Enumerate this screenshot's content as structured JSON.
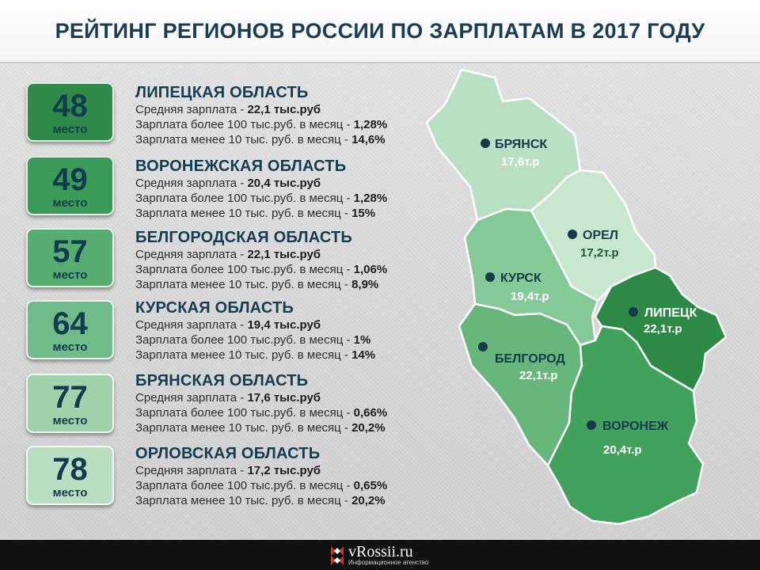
{
  "title": "РЕЙТИНГ РЕГИОНОВ РОССИИ ПО ЗАРПЛАТАМ В 2017 ГОДУ",
  "place_word": "место",
  "items": [
    {
      "rank": "48",
      "name": "ЛИПЕЦКАЯ ОБЛАСТЬ",
      "avg_label": "Средняя зарплата - ",
      "avg_value": "22,1 тыс.руб",
      "over_label": "Зарплата более 100 тыс.руб. в месяц - ",
      "over_value": "1,28%",
      "under_label": "Зарплата менее 10 тыс. руб. в месяц - ",
      "under_value": "14,6%",
      "color": "#2f8a4a"
    },
    {
      "rank": "49",
      "name": "ВОРОНЕЖСКАЯ ОБЛАСТЬ",
      "avg_label": "Средняя зарплата - ",
      "avg_value": "20,4 тыс.руб",
      "over_label": "Зарплата более 100 тыс.руб. в месяц - ",
      "over_value": "1,28%",
      "under_label": "Зарплата менее 10 тыс. руб. в месяц - ",
      "under_value": "15%",
      "color": "#3a9b59"
    },
    {
      "rank": "57",
      "name": "БЕЛГОРОДСКАЯ ОБЛАСТЬ",
      "avg_label": "Средняя зарплата - ",
      "avg_value": "22,1 тыс.руб",
      "over_label": "Зарплата более 100 тыс.руб. в месяц - ",
      "over_value": "1,06%",
      "under_label": "Зарплата менее 10 тыс. руб. в месяц - ",
      "under_value": "8,9%",
      "color": "#56ad72"
    },
    {
      "rank": "64",
      "name": "КУРСКАЯ ОБЛАСТЬ",
      "avg_label": "Средняя зарплата - ",
      "avg_value": "19,4 тыс.руб",
      "over_label": "Зарплата более 100 тыс.руб. в месяц - ",
      "over_value": "1%",
      "under_label": "Зарплата менее 10 тыс. руб. в месяц - ",
      "under_value": "14%",
      "color": "#6fbb8a"
    },
    {
      "rank": "77",
      "name": "БРЯНСКАЯ ОБЛАСТЬ",
      "avg_label": "Средняя зарплата - ",
      "avg_value": "17,6 тыс.руб",
      "over_label": "Зарплата более 100 тыс.руб. в месяц - ",
      "over_value": "0,66%",
      "under_label": "Зарплата менее 10 тыс. руб. в месяц - ",
      "under_value": "20,2%",
      "color": "#9dd2ab"
    },
    {
      "rank": "78",
      "name": "ОРЛОВСКАЯ ОБЛАСТЬ",
      "avg_label": "Средняя зарплата - ",
      "avg_value": "17,2 тыс.руб",
      "over_label": "Зарплата более 100 тыс.руб. в месяц - ",
      "over_value": "0,65%",
      "under_label": "Зарплата менее 10 тыс. руб. в месяц - ",
      "under_value": "20,2%",
      "color": "#b8dfc2"
    }
  ],
  "map": {
    "regions": [
      {
        "id": "bryansk",
        "city": "БРЯНСК",
        "value": "17,6т.р",
        "fill": "#b9e0c3"
      },
      {
        "id": "orel",
        "city": "ОРЕЛ",
        "value": "17,2т.р",
        "fill": "#c9e7cf"
      },
      {
        "id": "kursk",
        "city": "КУРСК",
        "value": "19,4т.р",
        "fill": "#86c998"
      },
      {
        "id": "lipetsk",
        "city": "ЛИПЕЦК",
        "value": "22,1т.р",
        "fill": "#2d8a46"
      },
      {
        "id": "belgorod",
        "city": "БЕЛГОРОД",
        "value": "22,1т.р",
        "fill": "#67b77d"
      },
      {
        "id": "voronezh",
        "city": "ВОРОНЕЖ",
        "value": "20,4т.р",
        "fill": "#43a15e"
      }
    ]
  },
  "footer": {
    "logo_text": "vRossii.ru",
    "logo_subtext": "Информационное агенство"
  }
}
